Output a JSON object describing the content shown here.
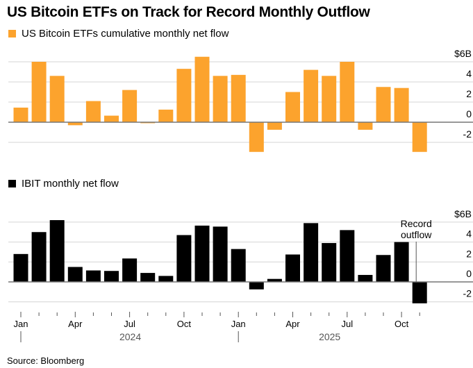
{
  "title": "US Bitcoin ETFs on Track for Record Monthly Outflow",
  "source": "Source: Bloomberg",
  "chart_data": [
    {
      "type": "bar",
      "legend": "US Bitcoin ETFs cumulative monthly net flow",
      "color": "#fca32d",
      "months": [
        "Jan 2024",
        "Feb 2024",
        "Mar 2024",
        "Apr 2024",
        "May 2024",
        "Jun 2024",
        "Jul 2024",
        "Aug 2024",
        "Sep 2024",
        "Oct 2024",
        "Nov 2024",
        "Dec 2024",
        "Jan 2025",
        "Feb 2025",
        "Mar 2025",
        "Apr 2025",
        "May 2025",
        "Jun 2025",
        "Jul 2025",
        "Aug 2025",
        "Sep 2025",
        "Oct 2025",
        "Nov 2025"
      ],
      "values": [
        1.45,
        6.0,
        4.6,
        -0.3,
        2.1,
        0.65,
        3.2,
        -0.1,
        1.25,
        5.3,
        6.5,
        4.6,
        4.7,
        -2.95,
        -0.75,
        3.0,
        5.2,
        4.6,
        6.0,
        -0.75,
        3.5,
        3.4,
        -2.95
      ],
      "ylim": [
        -3,
        6.5
      ],
      "yticks": [
        6,
        4,
        2,
        0,
        -2
      ],
      "ytick_labels": [
        "$6B",
        "4",
        "2",
        "0",
        "-2"
      ],
      "unit": "$B"
    },
    {
      "type": "bar",
      "legend": "IBIT monthly net flow",
      "color": "#000000",
      "months": [
        "Jan 2024",
        "Feb 2024",
        "Mar 2024",
        "Apr 2024",
        "May 2024",
        "Jun 2024",
        "Jul 2024",
        "Aug 2024",
        "Sep 2024",
        "Oct 2024",
        "Nov 2024",
        "Dec 2024",
        "Jan 2025",
        "Feb 2025",
        "Mar 2025",
        "Apr 2025",
        "May 2025",
        "Jun 2025",
        "Jul 2025",
        "Aug 2025",
        "Sep 2025",
        "Oct 2025",
        "Nov 2025"
      ],
      "values": [
        2.8,
        5.0,
        6.2,
        1.5,
        1.15,
        1.1,
        2.35,
        0.9,
        0.6,
        4.7,
        5.65,
        5.55,
        3.3,
        -0.75,
        0.3,
        2.75,
        5.9,
        3.9,
        5.2,
        0.7,
        2.7,
        4.0,
        -2.15
      ],
      "ylim": [
        -3,
        6.5
      ],
      "yticks": [
        6,
        4,
        2,
        0,
        -2
      ],
      "ytick_labels": [
        "$6B",
        "4",
        "2",
        "0",
        "-2"
      ],
      "unit": "$B",
      "annotation": {
        "text_line1": "Record",
        "text_line2": "outflow",
        "month_index": 22
      },
      "xtick_labels": [
        {
          "i": 0,
          "label": "Jan"
        },
        {
          "i": 3,
          "label": "Apr"
        },
        {
          "i": 6,
          "label": "Jul"
        },
        {
          "i": 9,
          "label": "Oct"
        },
        {
          "i": 12,
          "label": "Jan"
        },
        {
          "i": 15,
          "label": "Apr"
        },
        {
          "i": 18,
          "label": "Jul"
        },
        {
          "i": 21,
          "label": "Oct"
        }
      ],
      "year_labels": [
        {
          "label": "2024",
          "center_i": 5.5
        },
        {
          "label": "2025",
          "center_i": 16.5
        }
      ]
    }
  ]
}
